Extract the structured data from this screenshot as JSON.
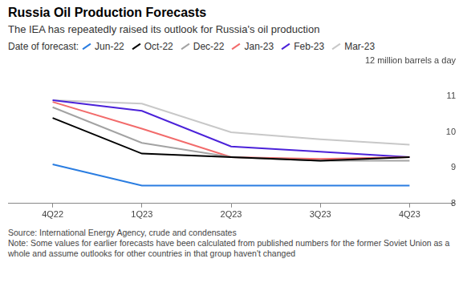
{
  "chart_data": {
    "type": "line",
    "title": "Russia Oil Production Forecasts",
    "subtitle": "The IEA has repeatedly raised its outlook for Russia's oil production",
    "legend_title": "Date of forecast:",
    "legend": "top-left",
    "categories": [
      "4Q22",
      "1Q23",
      "2Q23",
      "3Q23",
      "4Q23"
    ],
    "series": [
      {
        "name": "Jun-22",
        "color": "#2a7de1",
        "values": [
          9.1,
          8.5,
          8.5,
          8.5,
          8.5
        ]
      },
      {
        "name": "Oct-22",
        "color": "#000000",
        "values": [
          10.4,
          9.4,
          9.3,
          9.2,
          9.3
        ]
      },
      {
        "name": "Dec-22",
        "color": "#a3a3a3",
        "values": [
          10.7,
          9.7,
          9.3,
          9.2,
          9.2
        ]
      },
      {
        "name": "Jan-23",
        "color": "#f26b6b",
        "values": [
          10.85,
          10.1,
          9.3,
          9.25,
          9.3
        ]
      },
      {
        "name": "Feb-23",
        "color": "#4b22d9",
        "values": [
          10.9,
          10.6,
          9.6,
          9.45,
          9.3
        ]
      },
      {
        "name": "Mar-23",
        "color": "#c8c8c8",
        "values": [
          10.9,
          10.8,
          10.0,
          9.8,
          9.65
        ]
      }
    ],
    "ylim": [
      8,
      12
    ],
    "yticks": [
      8,
      9,
      10,
      11,
      {
        "value": 12,
        "label": "12 million barrels a day"
      }
    ],
    "grid": false,
    "marker": "none",
    "annotations": [
      "Source: International Energy Agency, crude and condensates",
      "Note: Some values for earlier forecasts have been calculated from published numbers for the former Soviet Union as a whole and assume outlooks for other countries in that group haven't changed"
    ]
  }
}
